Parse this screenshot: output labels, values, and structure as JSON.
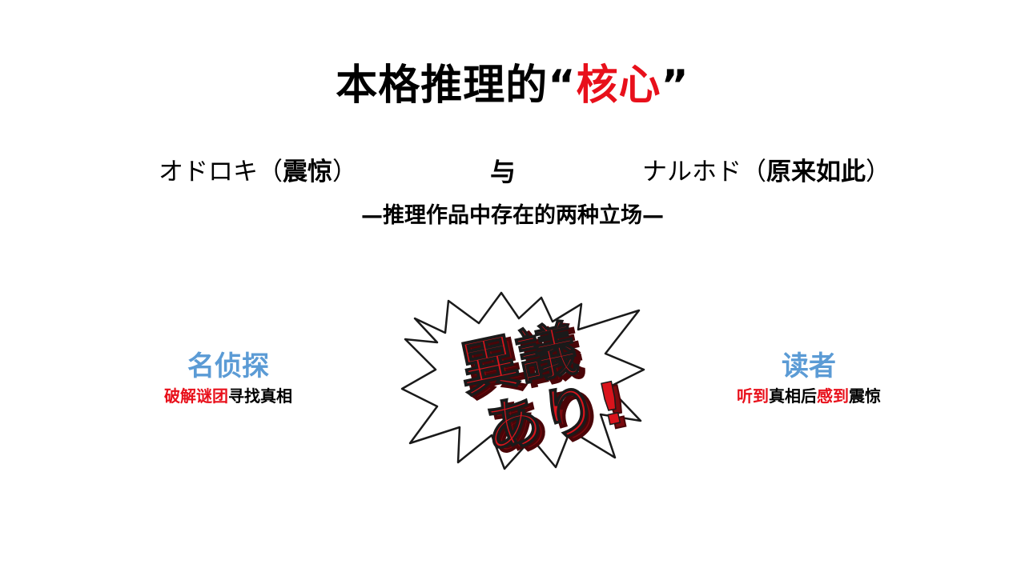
{
  "title": {
    "main": "本格推理的",
    "quote_open": "“",
    "highlight": "核心",
    "quote_close": "”"
  },
  "terms": {
    "left_kana": "オドロキ（",
    "left_meaning": "震惊",
    "left_close": "）",
    "connector": "与",
    "right_kana": "ナルホド（",
    "right_meaning": "原来如此",
    "right_close": "）"
  },
  "subtitle": "—推理作品中存在的两种立场—",
  "left_panel": {
    "heading": "名侦探",
    "desc_red": "破解谜团",
    "desc_black": "寻找真相"
  },
  "right_panel": {
    "heading": "读者",
    "desc_red1": "听到",
    "desc_black1": "真相后",
    "desc_red2": "感到",
    "desc_black2": "震惊"
  },
  "logo": {
    "text_top": "異議",
    "text_bottom": "あり!",
    "fill_color": "#d9141c",
    "shadow_color": "#7a0a0e"
  },
  "colors": {
    "accent_red": "#e8101b",
    "accent_blue": "#5b9bd5"
  }
}
